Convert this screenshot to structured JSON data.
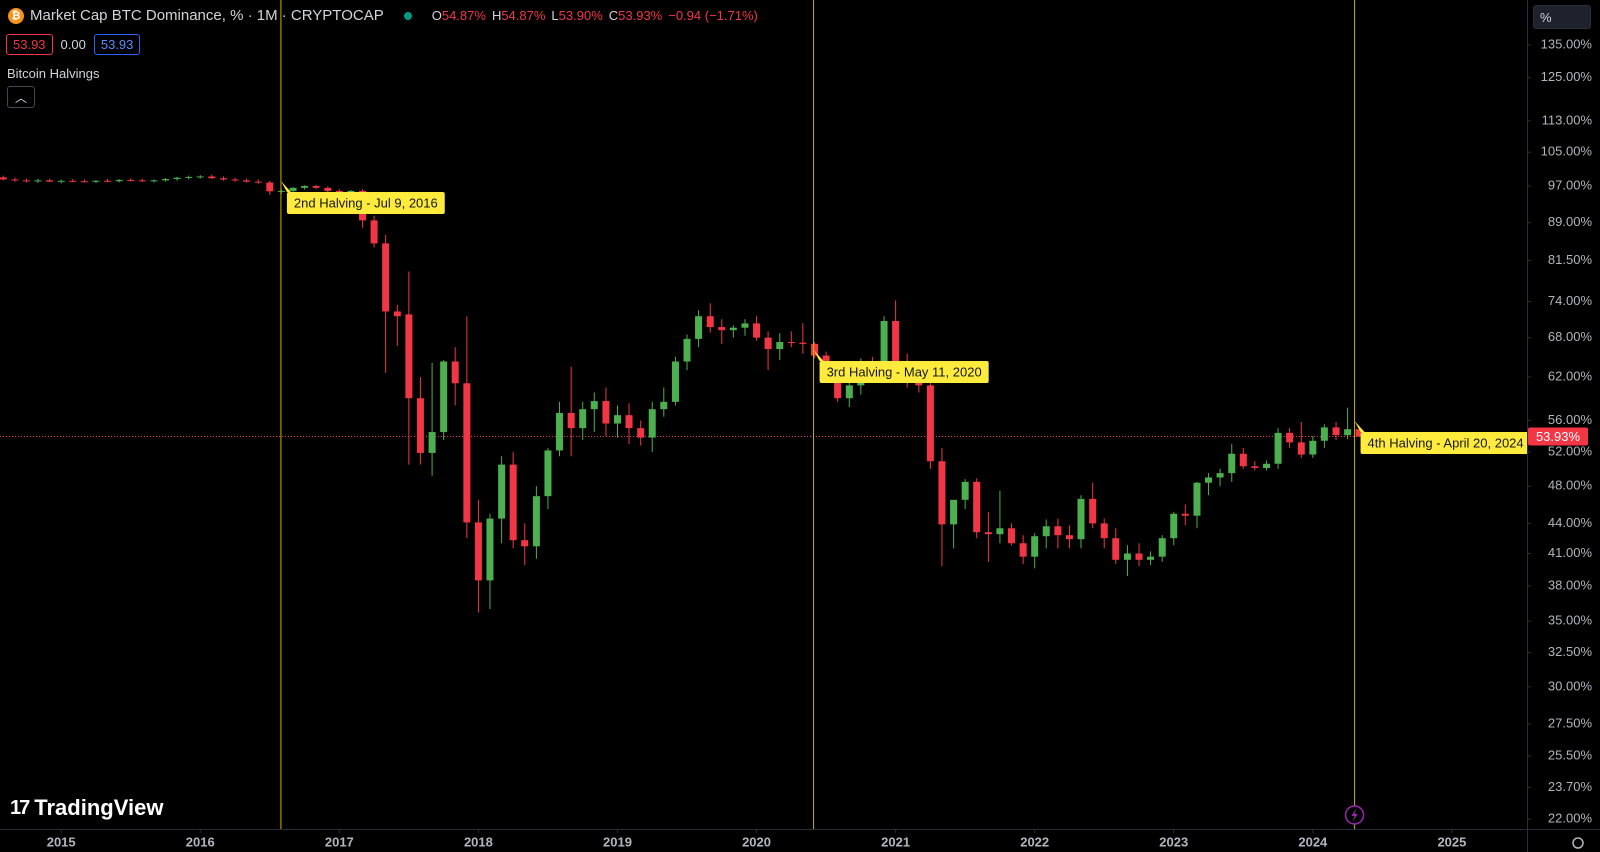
{
  "header": {
    "title": "Market Cap BTC Dominance, % · 1M · CRYPTOCAP",
    "ohlc": [
      {
        "key": "O",
        "value": "54.87%"
      },
      {
        "key": "H",
        "value": "54.87%"
      },
      {
        "key": "L",
        "value": "53.90%"
      },
      {
        "key": "C",
        "value": "53.93%"
      }
    ],
    "change": "−0.94 (−1.71%)",
    "boxes": [
      "53.93",
      "0.00",
      "53.93"
    ],
    "indicator": "Bitcoin Halvings"
  },
  "scale_button": "%",
  "logo": "TradingView",
  "chart_data": {
    "type": "candlestick",
    "log_scale": true,
    "up_color": "#4caf50",
    "down_color": "#f23645",
    "xlim": [
      2014.56,
      2025.54
    ],
    "xticks": [
      2015,
      2016,
      2017,
      2018,
      2019,
      2020,
      2021,
      2022,
      2023,
      2024,
      2025
    ],
    "ylim": [
      21.5,
      150
    ],
    "yticks": [
      {
        "value": 135,
        "label": "135.00%"
      },
      {
        "value": 125,
        "label": "125.00%"
      },
      {
        "value": 113,
        "label": "113.00%"
      },
      {
        "value": 105,
        "label": "105.00%"
      },
      {
        "value": 97,
        "label": "97.00%"
      },
      {
        "value": 89,
        "label": "89.00%"
      },
      {
        "value": 81.5,
        "label": "81.50%"
      },
      {
        "value": 74,
        "label": "74.00%"
      },
      {
        "value": 68,
        "label": "68.00%"
      },
      {
        "value": 62,
        "label": "62.00%"
      },
      {
        "value": 56,
        "label": "56.00%"
      },
      {
        "value": 52,
        "label": "52.00%"
      },
      {
        "value": 48,
        "label": "48.00%"
      },
      {
        "value": 44,
        "label": "44.00%"
      },
      {
        "value": 41,
        "label": "41.00%"
      },
      {
        "value": 38,
        "label": "38.00%"
      },
      {
        "value": 35,
        "label": "35.00%"
      },
      {
        "value": 32.5,
        "label": "32.50%"
      },
      {
        "value": 30,
        "label": "30.00%"
      },
      {
        "value": 27.5,
        "label": "27.50%"
      },
      {
        "value": 25.5,
        "label": "25.50%"
      },
      {
        "value": 23.7,
        "label": "23.70%"
      },
      {
        "value": 22,
        "label": "22.00%"
      }
    ],
    "last_price": 53.93,
    "last_price_label": "53.93%",
    "halvings": [
      {
        "label": "2nd Halving - Jul 9, 2016",
        "x": 2016.58
      },
      {
        "label": "3rd Halving - May 11, 2020",
        "x": 2020.41
      },
      {
        "label": "4th Halving - April 20, 2024",
        "x": 2024.3
      }
    ],
    "x": [
      2014.583,
      2014.667,
      2014.75,
      2014.833,
      2014.917,
      2015,
      2015.083,
      2015.167,
      2015.25,
      2015.333,
      2015.417,
      2015.5,
      2015.583,
      2015.667,
      2015.75,
      2015.833,
      2015.917,
      2016,
      2016.083,
      2016.167,
      2016.25,
      2016.333,
      2016.417,
      2016.5,
      2016.583,
      2016.667,
      2016.75,
      2016.833,
      2016.917,
      2017,
      2017.083,
      2017.167,
      2017.25,
      2017.333,
      2017.417,
      2017.5,
      2017.583,
      2017.667,
      2017.75,
      2017.833,
      2017.917,
      2018,
      2018.083,
      2018.167,
      2018.25,
      2018.333,
      2018.417,
      2018.5,
      2018.583,
      2018.667,
      2018.75,
      2018.833,
      2018.917,
      2019,
      2019.083,
      2019.167,
      2019.25,
      2019.333,
      2019.417,
      2019.5,
      2019.583,
      2019.667,
      2019.75,
      2019.833,
      2019.917,
      2020,
      2020.083,
      2020.167,
      2020.25,
      2020.333,
      2020.417,
      2020.5,
      2020.583,
      2020.667,
      2020.75,
      2020.833,
      2020.917,
      2021,
      2021.083,
      2021.167,
      2021.25,
      2021.333,
      2021.417,
      2021.5,
      2021.583,
      2021.667,
      2021.75,
      2021.833,
      2021.917,
      2022,
      2022.083,
      2022.167,
      2022.25,
      2022.333,
      2022.417,
      2022.5,
      2022.583,
      2022.667,
      2022.75,
      2022.833,
      2022.917,
      2023,
      2023.083,
      2023.167,
      2023.25,
      2023.333,
      2023.417,
      2023.5,
      2023.583,
      2023.667,
      2023.75,
      2023.833,
      2023.917,
      2024,
      2024.083,
      2024.167,
      2024.25,
      2024.333
    ],
    "open": [
      99.0,
      98.5,
      98.3,
      98.1,
      98.3,
      98.0,
      98.2,
      98.1,
      98.0,
      98.2,
      98.1,
      98.4,
      98.3,
      98.1,
      98.3,
      98.6,
      98.9,
      99.1,
      99.2,
      98.8,
      98.5,
      98.3,
      98.0,
      97.8,
      95.8,
      95.9,
      96.6,
      97.0,
      96.6,
      95.9,
      95.6,
      95.9,
      89.5,
      84.8,
      72.3,
      71.8,
      59.0,
      51.9,
      54.5,
      64.3,
      61.1,
      44.1,
      38.5,
      44.5,
      50.5,
      42.3,
      41.7,
      46.9,
      52.2,
      57.0,
      55.0,
      57.5,
      58.6,
      55.6,
      56.7,
      55.0,
      53.8,
      57.5,
      58.5,
      64.3,
      67.8,
      71.5,
      69.7,
      69.2,
      69.6,
      70.3,
      68.0,
      66.2,
      67.3,
      67.2,
      67.0,
      65.2,
      62.6,
      59.0,
      60.8,
      64.3,
      64.0,
      70.7,
      63.8,
      62.0,
      60.8,
      50.9,
      43.9,
      46.5,
      48.5,
      43.1,
      42.9,
      43.5,
      42.0,
      40.7,
      42.7,
      43.7,
      42.8,
      42.4,
      46.6,
      44.0,
      42.5,
      40.4,
      41.0,
      40.4,
      40.7,
      42.5,
      45.0,
      44.8,
      48.4,
      49.0,
      49.5,
      51.8,
      50.3,
      50.1,
      50.6,
      54.4,
      53.2,
      51.7,
      53.4,
      55.1,
      54.1,
      54.87
    ],
    "high": [
      99.4,
      99.0,
      98.7,
      98.6,
      98.7,
      98.5,
      98.6,
      98.5,
      98.4,
      98.6,
      98.6,
      98.8,
      98.7,
      98.5,
      98.8,
      99.1,
      99.4,
      99.5,
      99.6,
      99.2,
      98.9,
      98.7,
      98.5,
      98.2,
      96.3,
      96.7,
      97.2,
      97.3,
      96.9,
      96.3,
      96.1,
      96.3,
      90.5,
      86.5,
      73.4,
      79.4,
      62.0,
      64.1,
      64.5,
      66.5,
      71.5,
      46.5,
      45.0,
      51.5,
      52.0,
      44.0,
      48.0,
      52.5,
      58.5,
      63.5,
      58.5,
      59.8,
      60.5,
      58.0,
      58.3,
      56.0,
      58.5,
      60.5,
      65.0,
      68.5,
      72.5,
      73.7,
      71.0,
      70.0,
      71.0,
      71.5,
      69.0,
      68.7,
      69.0,
      70.3,
      67.3,
      65.8,
      63.5,
      62.0,
      64.8,
      65.0,
      71.5,
      74.2,
      65.5,
      63.0,
      64.0,
      52.5,
      46.0,
      48.8,
      48.9,
      45.2,
      47.5,
      44.0,
      42.8,
      43.0,
      44.4,
      44.5,
      43.8,
      47.0,
      48.4,
      44.5,
      43.5,
      41.8,
      42.0,
      41.2,
      42.8,
      45.2,
      46.0,
      48.5,
      49.5,
      50.0,
      53.0,
      52.5,
      50.9,
      51.0,
      55.0,
      55.0,
      55.8,
      54.0,
      55.5,
      55.8,
      57.7,
      54.87
    ],
    "low": [
      98.3,
      98.0,
      97.8,
      97.7,
      97.9,
      97.6,
      97.9,
      97.8,
      97.7,
      97.9,
      97.8,
      98.0,
      97.9,
      97.8,
      98.0,
      98.2,
      98.5,
      98.7,
      98.6,
      98.2,
      98.0,
      97.8,
      97.5,
      95.0,
      95.2,
      95.5,
      96.2,
      96.3,
      95.6,
      95.1,
      95.0,
      88.0,
      84.0,
      62.6,
      66.7,
      50.5,
      50.5,
      49.2,
      53.5,
      58.0,
      42.5,
      35.7,
      36.0,
      42.0,
      41.5,
      39.9,
      40.5,
      45.5,
      51.5,
      51.5,
      53.5,
      54.5,
      54.0,
      53.8,
      53.0,
      52.8,
      52.0,
      56.5,
      58.0,
      63.0,
      66.5,
      68.8,
      67.0,
      68.0,
      68.3,
      67.5,
      63.0,
      64.5,
      66.5,
      65.5,
      64.8,
      61.5,
      58.5,
      57.8,
      59.5,
      62.0,
      62.5,
      62.0,
      60.5,
      59.8,
      50.0,
      39.8,
      41.5,
      45.5,
      42.5,
      40.2,
      42.0,
      41.8,
      40.0,
      39.6,
      41.5,
      41.5,
      41.5,
      41.5,
      43.5,
      41.5,
      40.0,
      38.9,
      39.8,
      39.9,
      40.2,
      41.8,
      43.8,
      43.5,
      47.0,
      48.0,
      48.5,
      50.0,
      49.8,
      49.8,
      50.0,
      52.5,
      51.3,
      51.3,
      52.5,
      53.5,
      53.6,
      53.9
    ],
    "close": [
      98.5,
      98.3,
      98.1,
      98.3,
      98.0,
      98.2,
      98.1,
      98.0,
      98.2,
      98.1,
      98.4,
      98.3,
      98.1,
      98.3,
      98.6,
      98.9,
      99.1,
      99.2,
      98.8,
      98.5,
      98.3,
      98.0,
      97.8,
      95.8,
      95.9,
      96.6,
      97.0,
      96.6,
      95.9,
      95.6,
      95.9,
      89.5,
      84.8,
      72.3,
      71.5,
      59.0,
      51.9,
      54.5,
      64.3,
      61.1,
      44.1,
      38.5,
      44.5,
      50.5,
      42.3,
      41.7,
      46.9,
      52.2,
      57.0,
      55.0,
      57.5,
      58.6,
      55.6,
      56.7,
      55.0,
      53.8,
      57.5,
      58.5,
      64.3,
      67.8,
      71.5,
      69.7,
      69.2,
      69.6,
      70.3,
      68.0,
      66.2,
      67.3,
      67.2,
      67.0,
      65.2,
      62.6,
      59.0,
      60.8,
      64.3,
      64.0,
      70.7,
      63.8,
      62.0,
      60.8,
      50.9,
      43.9,
      46.5,
      48.5,
      43.1,
      42.9,
      43.5,
      42.0,
      40.7,
      42.7,
      43.7,
      42.8,
      42.4,
      46.6,
      44.0,
      42.5,
      40.4,
      41.0,
      40.4,
      40.7,
      42.5,
      45.0,
      44.8,
      48.4,
      49.0,
      49.5,
      51.8,
      50.3,
      50.1,
      50.6,
      54.4,
      53.2,
      51.7,
      53.4,
      55.1,
      54.1,
      54.87,
      53.93
    ]
  }
}
